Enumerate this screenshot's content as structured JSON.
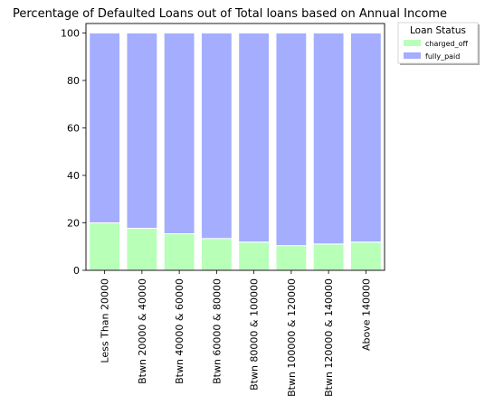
{
  "chart_data": {
    "type": "bar",
    "stacked": true,
    "title": "Percentage of Defaulted Loans out of Total loans based on Annual Income",
    "xlabel": "",
    "ylabel": "",
    "ylim": [
      0,
      104
    ],
    "yticks": [
      0,
      20,
      40,
      60,
      80,
      100
    ],
    "categories": [
      "Less Than 20000",
      "Btwn 20000 & 40000",
      "Btwn 40000 & 60000",
      "Btwn 60000 & 80000",
      "Btwn 80000 & 100000",
      "Btwn 100000 & 120000",
      "Btwn 120000 & 140000",
      "Above 140000"
    ],
    "series": [
      {
        "name": "charged_off",
        "color": "#b8ffb8",
        "values": [
          20.0,
          17.7,
          15.4,
          13.4,
          11.9,
          10.4,
          11.1,
          11.9
        ]
      },
      {
        "name": "fully_paid",
        "color": "#a5adff",
        "values": [
          80.0,
          82.3,
          84.6,
          86.6,
          88.1,
          89.6,
          88.9,
          88.1
        ]
      }
    ],
    "legend": {
      "title": "Loan Status",
      "position": "outside-top-right"
    },
    "grid": false
  }
}
